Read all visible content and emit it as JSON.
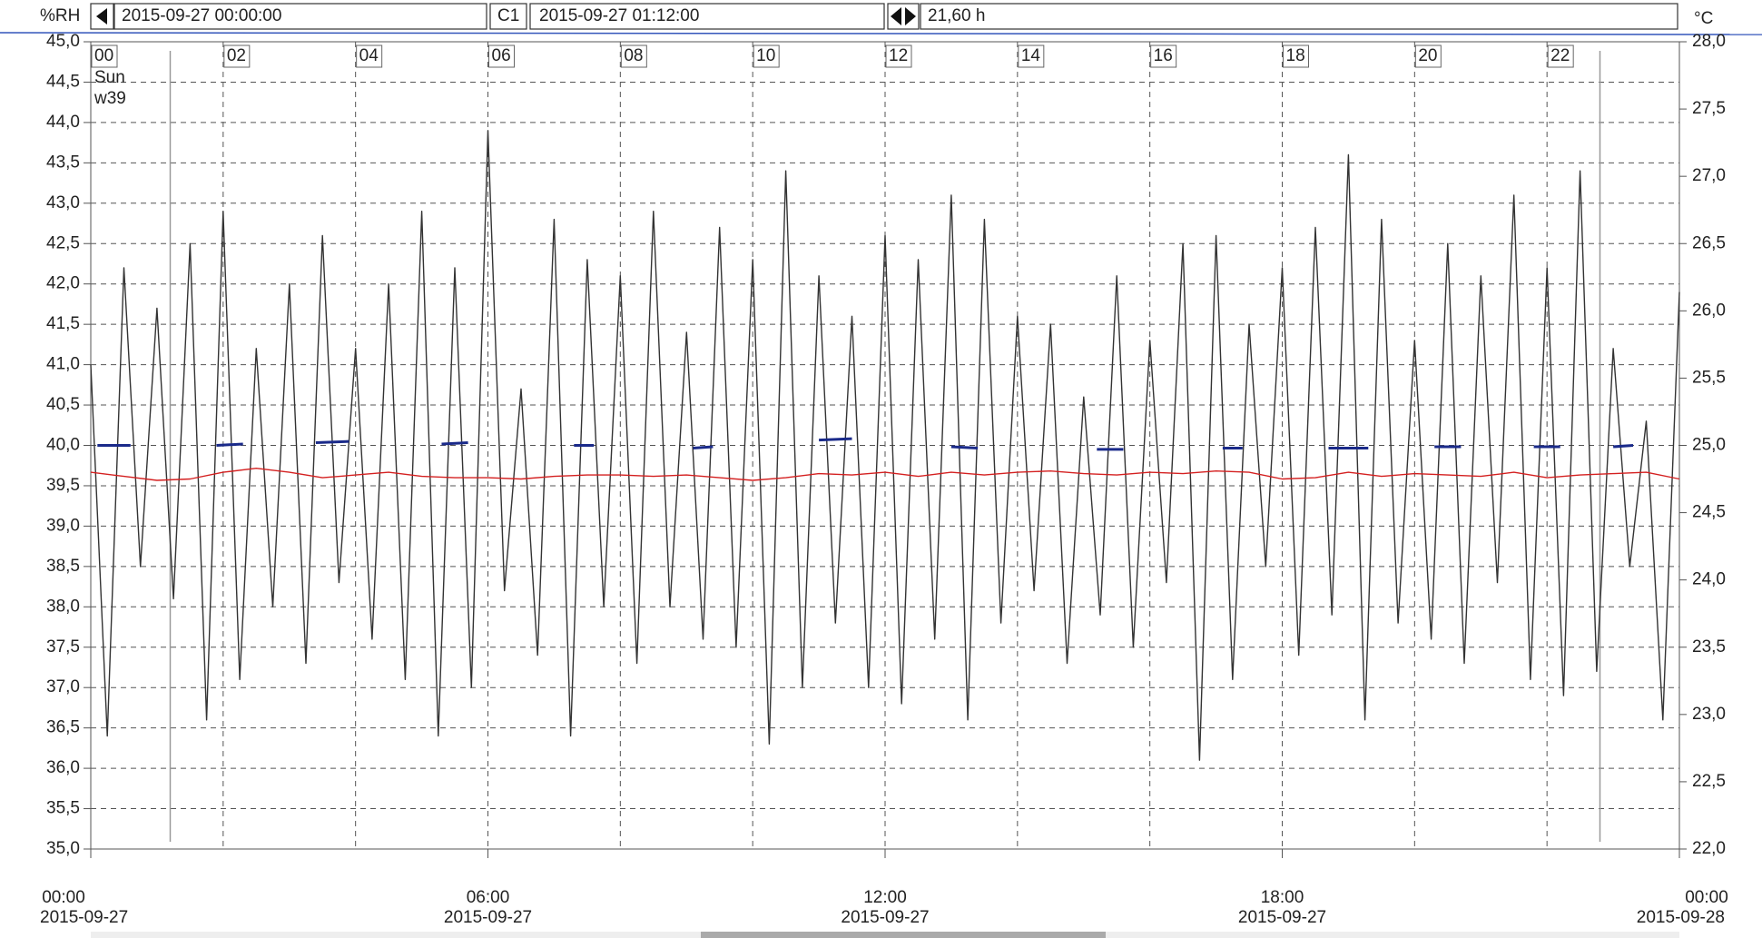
{
  "chart_data": {
    "type": "line",
    "toolbar": {
      "left_unit": "%RH",
      "start": "2015-09-27 00:00:00",
      "cursor_name": "C1",
      "cursor_time": "2015-09-27 01:12:00",
      "span": "21,60 h",
      "right_unit": "°C"
    },
    "day_label": "Sun",
    "week_label": "w39",
    "xlim": [
      0,
      24
    ],
    "xticks": [
      {
        "value": 0,
        "label": "00:00"
      },
      {
        "value": 6,
        "label": "06:00"
      },
      {
        "value": 12,
        "label": "12:00"
      },
      {
        "value": 18,
        "label": "18:00"
      },
      {
        "value": 24,
        "label": "00:00"
      }
    ],
    "xtick_dates": [
      "2015-09-27",
      "2015-09-27",
      "2015-09-27",
      "2015-09-27",
      "2015-09-28"
    ],
    "top_ticks": [
      {
        "value": 0,
        "label": "00"
      },
      {
        "value": 2,
        "label": "02"
      },
      {
        "value": 4,
        "label": "04"
      },
      {
        "value": 6,
        "label": "06"
      },
      {
        "value": 8,
        "label": "08"
      },
      {
        "value": 10,
        "label": "10"
      },
      {
        "value": 12,
        "label": "12"
      },
      {
        "value": 14,
        "label": "14"
      },
      {
        "value": 16,
        "label": "16"
      },
      {
        "value": 18,
        "label": "18"
      },
      {
        "value": 20,
        "label": "20"
      },
      {
        "value": 22,
        "label": "22"
      }
    ],
    "cursors": [
      1.2,
      22.8
    ],
    "ylim": [
      35,
      45
    ],
    "yticks": [
      {
        "value": 35,
        "label": "35,0"
      },
      {
        "value": 35.5,
        "label": "35,5"
      },
      {
        "value": 36,
        "label": "36,0"
      },
      {
        "value": 36.5,
        "label": "36,5"
      },
      {
        "value": 37,
        "label": "37,0"
      },
      {
        "value": 37.5,
        "label": "37,5"
      },
      {
        "value": 38,
        "label": "38,0"
      },
      {
        "value": 38.5,
        "label": "38,5"
      },
      {
        "value": 39,
        "label": "39,0"
      },
      {
        "value": 39.5,
        "label": "39,5"
      },
      {
        "value": 40,
        "label": "40,0"
      },
      {
        "value": 40.5,
        "label": "40,5"
      },
      {
        "value": 41,
        "label": "41,0"
      },
      {
        "value": 41.5,
        "label": "41,5"
      },
      {
        "value": 42,
        "label": "42,0"
      },
      {
        "value": 42.5,
        "label": "42,5"
      },
      {
        "value": 43,
        "label": "43,0"
      },
      {
        "value": 43.5,
        "label": "43,5"
      },
      {
        "value": 44,
        "label": "44,0"
      },
      {
        "value": 44.5,
        "label": "44,5"
      },
      {
        "value": 45,
        "label": "45,0"
      }
    ],
    "y2lim": [
      22,
      28
    ],
    "y2ticks": [
      {
        "value": 22,
        "label": "22,0"
      },
      {
        "value": 22.5,
        "label": "22,5"
      },
      {
        "value": 23,
        "label": "23,0"
      },
      {
        "value": 23.5,
        "label": "23,5"
      },
      {
        "value": 24,
        "label": "24,0"
      },
      {
        "value": 24.5,
        "label": "24,5"
      },
      {
        "value": 25,
        "label": "25,0"
      },
      {
        "value": 25.5,
        "label": "25,5"
      },
      {
        "value": 26,
        "label": "26,0"
      },
      {
        "value": 26.5,
        "label": "26,5"
      },
      {
        "value": 27,
        "label": "27,0"
      },
      {
        "value": 27.5,
        "label": "27,5"
      },
      {
        "value": 28,
        "label": "28,0"
      }
    ],
    "grid": true,
    "series": [
      {
        "color": "#333333",
        "x": [
          0,
          0.25,
          0.5,
          0.75,
          1,
          1.25,
          1.5,
          1.75,
          2,
          2.25,
          2.5,
          2.75,
          3,
          3.25,
          3.5,
          3.75,
          4,
          4.25,
          4.5,
          4.75,
          5,
          5.25,
          5.5,
          5.75,
          6,
          6.25,
          6.5,
          6.75,
          7,
          7.25,
          7.5,
          7.75,
          8,
          8.25,
          8.5,
          8.75,
          9,
          9.25,
          9.5,
          9.75,
          10,
          10.25,
          10.5,
          10.75,
          11,
          11.25,
          11.5,
          11.75,
          12,
          12.25,
          12.5,
          12.75,
          13,
          13.25,
          13.5,
          13.75,
          14,
          14.25,
          14.5,
          14.75,
          15,
          15.25,
          15.5,
          15.75,
          16,
          16.25,
          16.5,
          16.75,
          17,
          17.25,
          17.5,
          17.75,
          18,
          18.25,
          18.5,
          18.75,
          19,
          19.25,
          19.5,
          19.75,
          20,
          20.25,
          20.5,
          20.75,
          21,
          21.25,
          21.5,
          21.75,
          22,
          22.25,
          22.5,
          22.75,
          23,
          23.25,
          23.5,
          23.75,
          24
        ],
        "values": [
          41.0,
          36.4,
          42.2,
          38.5,
          41.7,
          38.1,
          42.5,
          36.6,
          42.9,
          37.1,
          41.2,
          38.0,
          42.0,
          37.3,
          42.6,
          38.3,
          41.2,
          37.6,
          42.0,
          37.1,
          42.9,
          36.4,
          42.2,
          37.0,
          43.9,
          38.2,
          40.7,
          37.4,
          42.8,
          36.4,
          42.3,
          38.0,
          42.1,
          37.3,
          42.9,
          38.0,
          41.4,
          37.6,
          42.7,
          37.5,
          42.3,
          36.3,
          43.4,
          37.0,
          42.1,
          37.8,
          41.6,
          37.0,
          42.6,
          36.8,
          42.3,
          37.6,
          43.1,
          36.6,
          42.8,
          37.8,
          41.6,
          38.2,
          41.5,
          37.3,
          40.6,
          37.9,
          42.1,
          37.5,
          41.3,
          38.3,
          42.5,
          36.1,
          42.6,
          37.1,
          41.5,
          38.5,
          42.2,
          37.4,
          42.7,
          37.9,
          43.6,
          36.6,
          42.8,
          37.8,
          41.3,
          37.6,
          42.5,
          37.3,
          42.1,
          38.3,
          43.1,
          37.1,
          42.2,
          36.9,
          43.4,
          37.2,
          41.2,
          38.5,
          40.3,
          36.6,
          41.9
        ]
      },
      {
        "color": "#d42020",
        "axis": "y2",
        "x": [
          0,
          0.5,
          1,
          1.5,
          2,
          2.5,
          3,
          3.5,
          4,
          4.5,
          5,
          5.5,
          6,
          6.5,
          7,
          7.5,
          8,
          8.5,
          9,
          9.5,
          10,
          10.5,
          11,
          11.5,
          12,
          12.5,
          13,
          13.5,
          14,
          14.5,
          15,
          15.5,
          16,
          16.5,
          17,
          17.5,
          18,
          18.5,
          19,
          19.5,
          20,
          20.5,
          21,
          21.5,
          22,
          22.5,
          23,
          23.5,
          24
        ],
        "values": [
          24.8,
          24.77,
          24.74,
          24.75,
          24.8,
          24.83,
          24.8,
          24.76,
          24.78,
          24.8,
          24.77,
          24.76,
          24.76,
          24.75,
          24.77,
          24.78,
          24.78,
          24.77,
          24.78,
          24.76,
          24.74,
          24.76,
          24.79,
          24.78,
          24.8,
          24.77,
          24.8,
          24.78,
          24.8,
          24.81,
          24.79,
          24.78,
          24.8,
          24.79,
          24.81,
          24.8,
          24.75,
          24.76,
          24.8,
          24.77,
          24.79,
          24.78,
          24.77,
          24.8,
          24.76,
          24.78,
          24.79,
          24.8,
          24.75
        ]
      },
      {
        "color": "#1a2a8a",
        "axis": "y2",
        "x": [
          0.1,
          0.6,
          0.7,
          1.9,
          2.3,
          2.4,
          3.4,
          3.9,
          4.0,
          5.3,
          5.7,
          5.8,
          7.3,
          7.6,
          7.7,
          9.1,
          9.4,
          9.5,
          11.0,
          11.5,
          11.6,
          13.0,
          13.4,
          13.5,
          15.2,
          15.6,
          15.7,
          17.1,
          17.4,
          17.5,
          18.7,
          19.3,
          19.4,
          20.3,
          20.7,
          20.8,
          21.8,
          22.2,
          22.3,
          23.0,
          23.3
        ],
        "values": [
          25.0,
          25.0,
          null,
          25.0,
          25.01,
          null,
          25.02,
          25.03,
          null,
          25.01,
          25.02,
          null,
          25.0,
          25.0,
          null,
          24.98,
          24.99,
          null,
          25.04,
          25.05,
          null,
          24.99,
          24.98,
          null,
          24.97,
          24.97,
          null,
          24.98,
          24.98,
          null,
          24.98,
          24.98,
          null,
          24.99,
          24.99,
          null,
          24.99,
          24.99,
          null,
          24.99,
          25.0
        ]
      }
    ]
  }
}
